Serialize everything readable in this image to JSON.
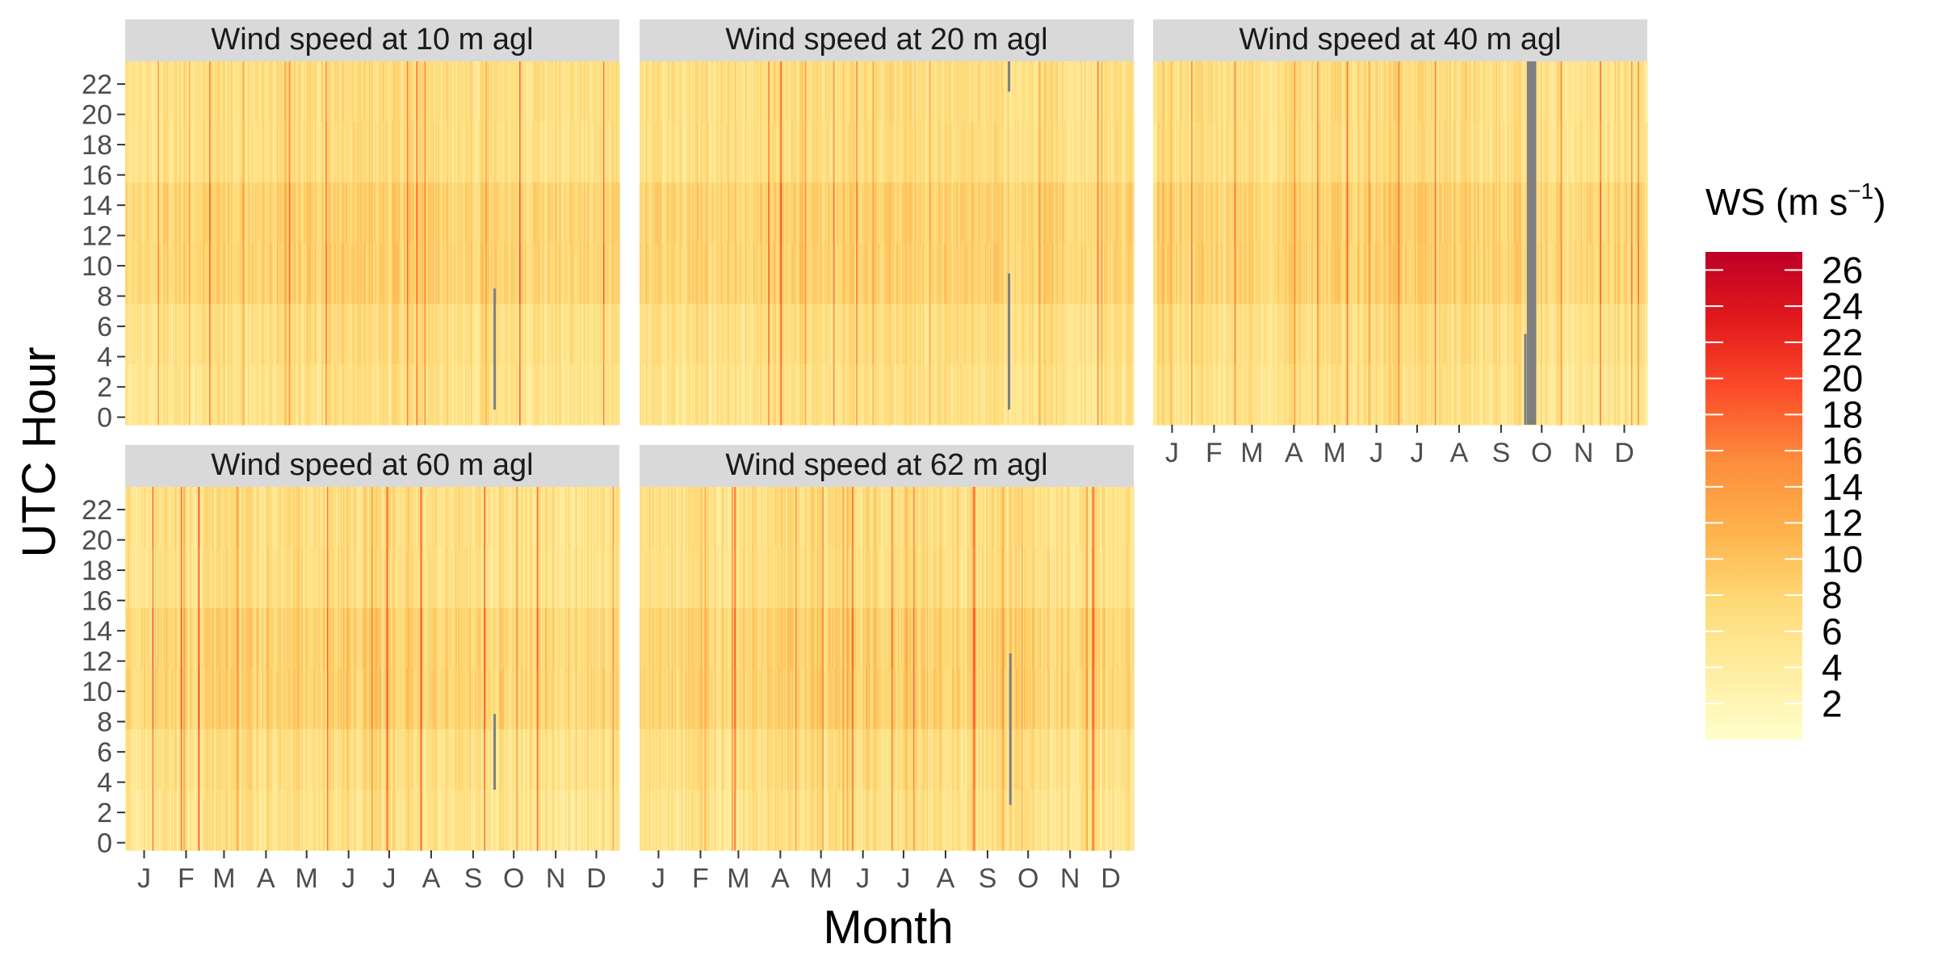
{
  "chart_data": {
    "type": "heatmap",
    "xlabel": "Month",
    "ylabel": "UTC Hour",
    "x_tick_labels": [
      "J",
      "F",
      "M",
      "A",
      "M",
      "J",
      "J",
      "A",
      "S",
      "O",
      "N",
      "D"
    ],
    "y_tick_labels": [
      "0",
      "2",
      "4",
      "6",
      "8",
      "10",
      "12",
      "14",
      "16",
      "18",
      "20",
      "22"
    ],
    "x_range_days": [
      1,
      365
    ],
    "y_range_hours": [
      0,
      23
    ],
    "legend": {
      "title": "WS (m s",
      "title_superscript": "−1",
      "title_suffix": ")",
      "position": "right",
      "breaks": [
        "26",
        "24",
        "22",
        "20",
        "18",
        "16",
        "14",
        "12",
        "10",
        "8",
        "6",
        "4",
        "2"
      ],
      "range": [
        0,
        27
      ],
      "colors": [
        "#ffffcc",
        "#ffeda0",
        "#fed976",
        "#feb24c",
        "#fd8d3c",
        "#fc4e2a",
        "#e31a1c",
        "#bd0026"
      ],
      "missing_color": "#7f7f7f"
    },
    "panels": [
      {
        "title": "Wind speed at 10 m agl",
        "missing": [
          {
            "day": 273,
            "from_hour": 1,
            "to_hour": 8
          }
        ]
      },
      {
        "title": "Wind speed at 20 m agl",
        "missing": [
          {
            "day": 273,
            "from_hour": 1,
            "to_hour": 9
          },
          {
            "day": 273,
            "from_hour": 22,
            "to_hour": 23
          }
        ]
      },
      {
        "title": "Wind speed at 40 m agl",
        "missing": [
          {
            "day": 277,
            "from_hour": 0,
            "to_hour": 23,
            "width_days": 7
          },
          {
            "day": 275,
            "from_hour": 0,
            "to_hour": 5
          }
        ]
      },
      {
        "title": "Wind speed at 60 m agl",
        "missing": [
          {
            "day": 273,
            "from_hour": 4,
            "to_hour": 8
          }
        ]
      },
      {
        "title": "Wind speed at 62 m agl",
        "missing": [
          {
            "day": 274,
            "from_hour": 3,
            "to_hour": 12
          }
        ]
      }
    ]
  }
}
